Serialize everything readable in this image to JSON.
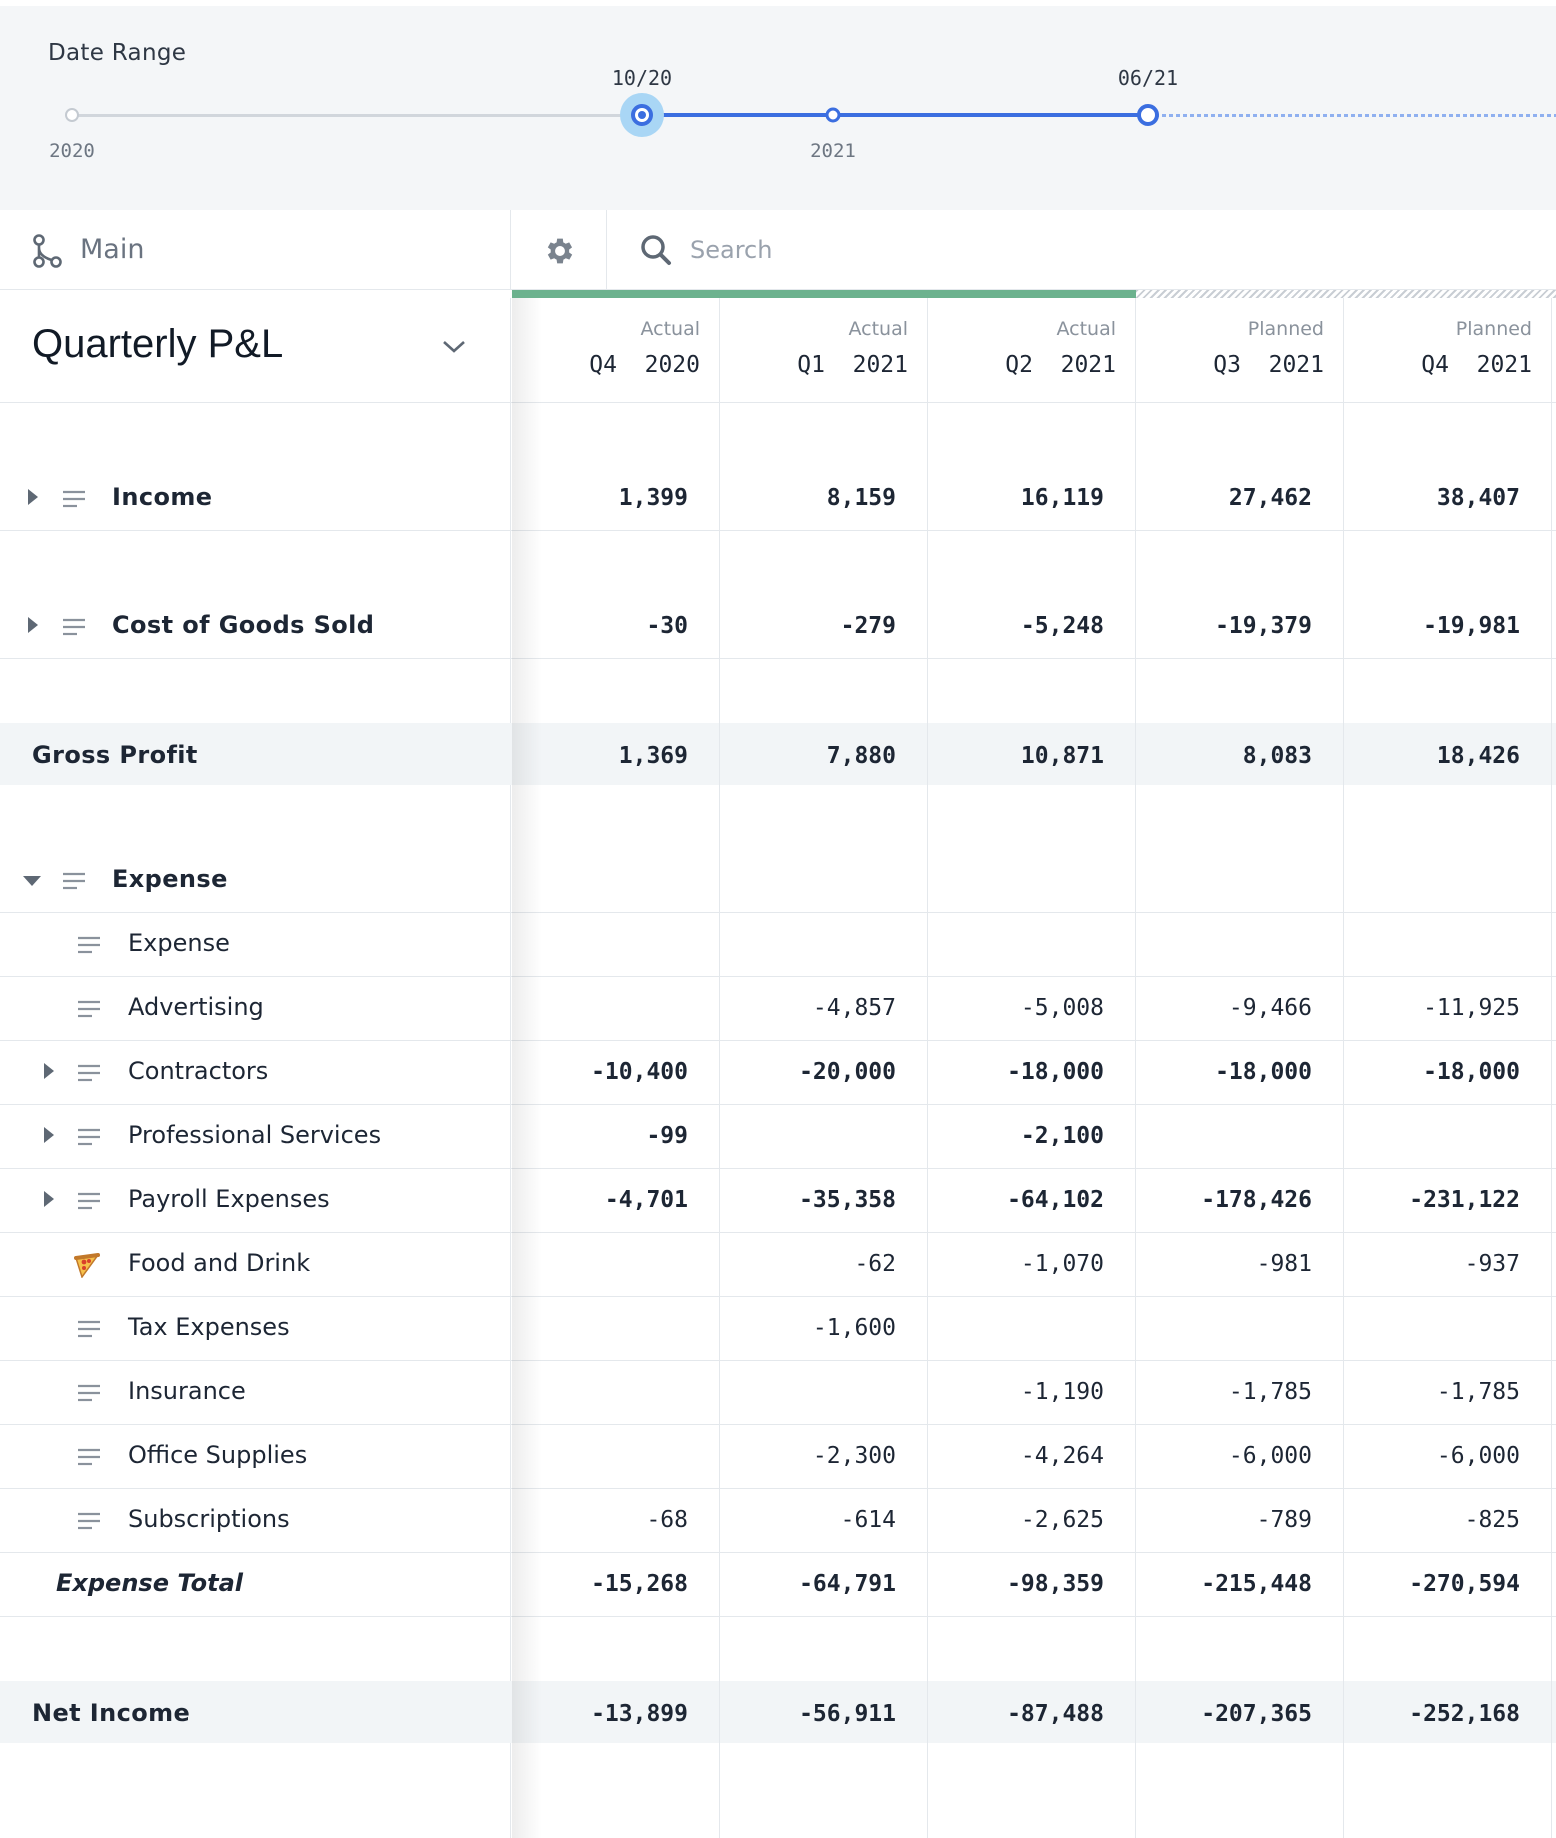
{
  "date_range": {
    "label": "Date Range",
    "start_marker": "10/20",
    "end_marker": "06/21",
    "years": [
      "2020",
      "2021"
    ]
  },
  "toolbar": {
    "branch": "Main",
    "search_placeholder": "Search",
    "search_icon": "search-icon",
    "settings_icon": "gear-icon",
    "branch_icon": "branch-icon"
  },
  "sheet": {
    "title": "Quarterly P&L",
    "columns": [
      {
        "status": "Actual",
        "period": "Q4  2020"
      },
      {
        "status": "Actual",
        "period": "Q1  2021"
      },
      {
        "status": "Actual",
        "period": "Q2  2021"
      },
      {
        "status": "Planned",
        "period": "Q3  2021"
      },
      {
        "status": "Planned",
        "period": "Q4  2021"
      }
    ],
    "rows": [
      {
        "label": "Income",
        "values": [
          "1,399",
          "8,159",
          "16,119",
          "27,462",
          "38,407"
        ]
      },
      {
        "label": "Cost of Goods Sold",
        "values": [
          "-30",
          "-279",
          "-5,248",
          "-19,379",
          "-19,981"
        ]
      },
      {
        "label": "Gross Profit",
        "values": [
          "1,369",
          "7,880",
          "10,871",
          "8,083",
          "18,426"
        ]
      },
      {
        "label": "Expense",
        "values": [
          "",
          "",
          "",
          "",
          ""
        ]
      },
      {
        "label": "Expense",
        "values": [
          "",
          "",
          "",
          "",
          ""
        ]
      },
      {
        "label": "Advertising",
        "values": [
          "",
          "-4,857",
          "-5,008",
          "-9,466",
          "-11,925"
        ]
      },
      {
        "label": "Contractors",
        "values": [
          "-10,400",
          "-20,000",
          "-18,000",
          "-18,000",
          "-18,000"
        ]
      },
      {
        "label": "Professional Services",
        "values": [
          "-99",
          "",
          "-2,100",
          "",
          ""
        ]
      },
      {
        "label": "Payroll Expenses",
        "values": [
          "-4,701",
          "-35,358",
          "-64,102",
          "-178,426",
          "-231,122"
        ]
      },
      {
        "label": "Food and Drink",
        "values": [
          "",
          "-62",
          "-1,070",
          "-981",
          "-937"
        ]
      },
      {
        "label": "Tax Expenses",
        "values": [
          "",
          "-1,600",
          "",
          "",
          ""
        ]
      },
      {
        "label": "Insurance",
        "values": [
          "",
          "",
          "-1,190",
          "-1,785",
          "-1,785"
        ]
      },
      {
        "label": "Office Supplies",
        "values": [
          "",
          "-2,300",
          "-4,264",
          "-6,000",
          "-6,000"
        ]
      },
      {
        "label": "Subscriptions",
        "values": [
          "-68",
          "-614",
          "-2,625",
          "-789",
          "-825"
        ]
      },
      {
        "label": "Expense Total",
        "values": [
          "-15,268",
          "-64,791",
          "-98,359",
          "-215,448",
          "-270,594"
        ]
      },
      {
        "label": "Net Income",
        "values": [
          "-13,899",
          "-56,911",
          "-87,488",
          "-207,365",
          "-252,168"
        ]
      }
    ]
  },
  "colors": {
    "accent_blue": "#3b6ee0",
    "actual_strip": "#6cb28e",
    "row_shade": "#f2f5f7"
  }
}
